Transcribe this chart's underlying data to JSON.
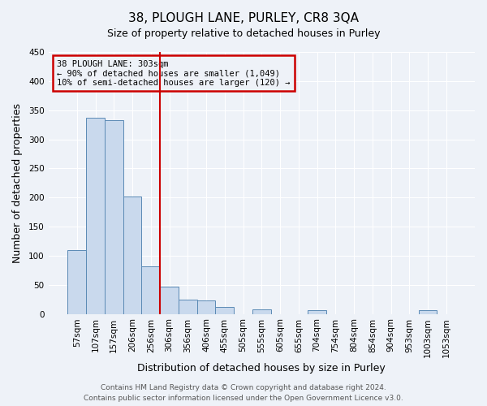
{
  "title": "38, PLOUGH LANE, PURLEY, CR8 3QA",
  "subtitle": "Size of property relative to detached houses in Purley",
  "xlabel": "Distribution of detached houses by size in Purley",
  "ylabel": "Number of detached properties",
  "bar_labels": [
    "57sqm",
    "107sqm",
    "157sqm",
    "206sqm",
    "256sqm",
    "306sqm",
    "356sqm",
    "406sqm",
    "455sqm",
    "505sqm",
    "555sqm",
    "605sqm",
    "655sqm",
    "704sqm",
    "754sqm",
    "804sqm",
    "854sqm",
    "904sqm",
    "953sqm",
    "1003sqm",
    "1053sqm"
  ],
  "bar_values": [
    110,
    337,
    333,
    201,
    82,
    47,
    25,
    23,
    12,
    0,
    8,
    0,
    0,
    7,
    0,
    0,
    0,
    0,
    0,
    6,
    0
  ],
  "bar_color": "#c9d9ed",
  "bar_edge_color": "#5b8ab5",
  "vline_x": 4.5,
  "vline_color": "#cc0000",
  "ylim": [
    0,
    450
  ],
  "yticks": [
    0,
    50,
    100,
    150,
    200,
    250,
    300,
    350,
    400,
    450
  ],
  "annotation_title": "38 PLOUGH LANE: 303sqm",
  "annotation_line1": "← 90% of detached houses are smaller (1,049)",
  "annotation_line2": "10% of semi-detached houses are larger (120) →",
  "annotation_box_color": "#cc0000",
  "footer_line1": "Contains HM Land Registry data © Crown copyright and database right 2024.",
  "footer_line2": "Contains public sector information licensed under the Open Government Licence v3.0.",
  "bg_color": "#eef2f8",
  "grid_color": "#ffffff",
  "title_fontsize": 11,
  "subtitle_fontsize": 9,
  "axis_label_fontsize": 9,
  "tick_fontsize": 7.5,
  "footer_fontsize": 6.5
}
